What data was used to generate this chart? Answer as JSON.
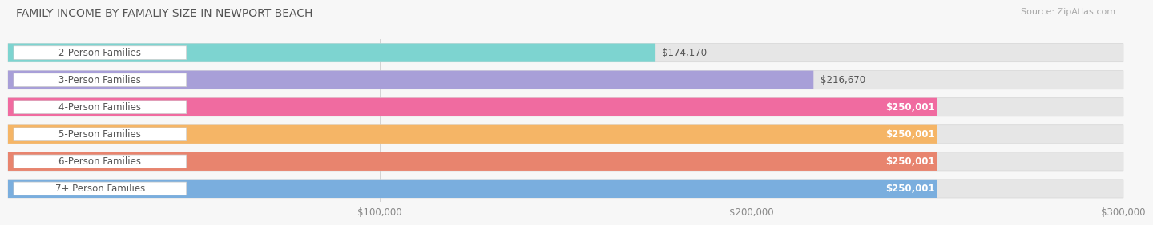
{
  "title": "FAMILY INCOME BY FAMALIY SIZE IN NEWPORT BEACH",
  "source": "Source: ZipAtlas.com",
  "categories": [
    "2-Person Families",
    "3-Person Families",
    "4-Person Families",
    "5-Person Families",
    "6-Person Families",
    "7+ Person Families"
  ],
  "values": [
    174170,
    216670,
    250001,
    250001,
    250001,
    250001
  ],
  "value_labels": [
    "$174,170",
    "$216,670",
    "$250,001",
    "$250,001",
    "$250,001",
    "$250,001"
  ],
  "bar_colors": [
    "#7dd4d0",
    "#a89fd8",
    "#f06ba0",
    "#f5b566",
    "#e8846e",
    "#7aaede"
  ],
  "label_text_color": "#555555",
  "value_inside_color": "#ffffff",
  "value_outside_color": "#555555",
  "background_color": "#f7f7f7",
  "bar_bg_color": "#e6e6e6",
  "xlim_max": 300000,
  "xticks": [
    100000,
    200000,
    300000
  ],
  "xtick_labels": [
    "$100,000",
    "$200,000",
    "$300,000"
  ],
  "title_fontsize": 10,
  "label_fontsize": 8.5,
  "value_fontsize": 8.5,
  "source_fontsize": 8
}
